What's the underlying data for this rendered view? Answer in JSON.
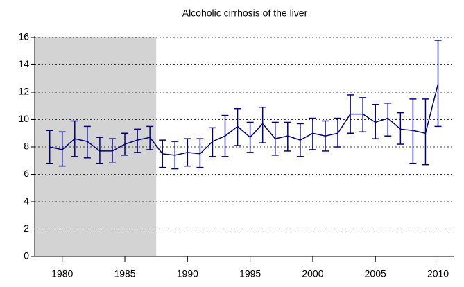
{
  "chart_data": {
    "type": "line",
    "title": "Alcoholic cirrhosis of the liver",
    "x": [
      1979,
      1980,
      1981,
      1982,
      1983,
      1984,
      1985,
      1986,
      1987,
      1988,
      1989,
      1990,
      1991,
      1992,
      1993,
      1994,
      1995,
      1996,
      1997,
      1998,
      1999,
      2000,
      2001,
      2002,
      2003,
      2004,
      2005,
      2006,
      2007,
      2008,
      2009,
      2010
    ],
    "series": [
      {
        "color": "#000080",
        "values": [
          8.0,
          7.8,
          8.6,
          8.4,
          7.7,
          7.7,
          8.2,
          8.5,
          8.7,
          7.5,
          7.4,
          7.6,
          7.5,
          8.4,
          8.8,
          9.5,
          8.7,
          9.7,
          8.6,
          8.8,
          8.5,
          9.0,
          8.8,
          9.0,
          10.4,
          10.4,
          9.8,
          10.1,
          9.3,
          9.2,
          9.0,
          12.6
        ],
        "lower": [
          6.8,
          6.6,
          7.3,
          7.2,
          6.8,
          6.9,
          7.4,
          7.6,
          7.8,
          6.5,
          6.4,
          6.6,
          6.5,
          7.3,
          7.3,
          8.1,
          7.6,
          8.3,
          7.4,
          7.7,
          7.3,
          7.8,
          7.7,
          8.0,
          9.0,
          9.1,
          8.6,
          8.8,
          8.2,
          6.8,
          6.7,
          9.5
        ],
        "upper": [
          9.2,
          9.1,
          9.9,
          9.5,
          8.7,
          8.6,
          9.0,
          9.3,
          9.5,
          8.5,
          8.4,
          8.6,
          8.6,
          9.4,
          10.3,
          10.8,
          9.8,
          10.9,
          9.8,
          9.8,
          9.7,
          10.1,
          9.9,
          10.1,
          11.8,
          11.6,
          11.1,
          11.2,
          10.5,
          11.5,
          11.5,
          15.8
        ]
      }
    ],
    "xlim": [
      1977.8,
      2011.3
    ],
    "xticks": [
      1980,
      1985,
      1990,
      1995,
      2000,
      2005,
      2010
    ],
    "ylim": [
      0,
      16
    ],
    "yticks": [
      0,
      2,
      4,
      6,
      8,
      10,
      12,
      14,
      16
    ],
    "grid": true,
    "shaded_range": [
      1977.8,
      1987.5
    ],
    "shade_color": "#d3d3d3"
  }
}
